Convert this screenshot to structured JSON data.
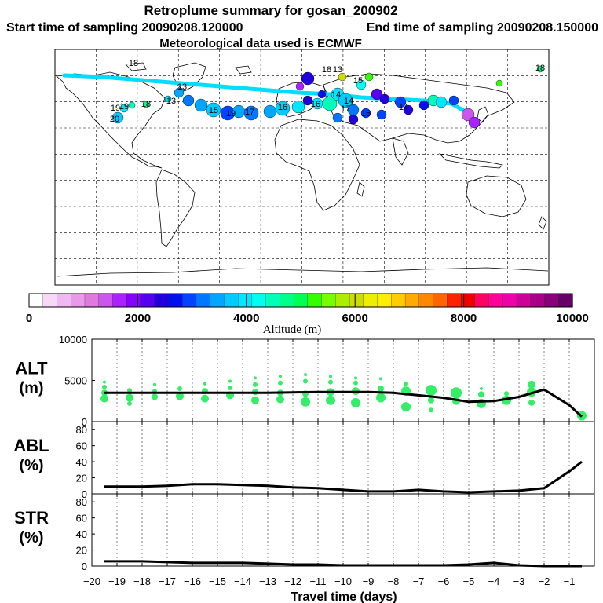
{
  "header": {
    "title": "Retroplume summary for gosan_200902",
    "start_label": "Start time of sampling 20090208.120000",
    "end_label": "End time of sampling 20090208.150000",
    "met_label": "Meteorological data used is ECMWF"
  },
  "map": {
    "plume_labels": [
      "18",
      "13",
      "19",
      "18",
      "13",
      "19",
      "15",
      "17",
      "16",
      "14",
      "16",
      "14",
      "20",
      "19",
      "18",
      "13",
      "15",
      "17",
      "16",
      "14",
      "18"
    ]
  },
  "colorbar": {
    "label": "Altitude (m)",
    "ticks": [
      "0",
      "2000",
      "4000",
      "6000",
      "8000",
      "10000"
    ],
    "colors": [
      "#ffffff",
      "#f7d8f7",
      "#f0b8f0",
      "#e89ae8",
      "#dd7add",
      "#cc55ee",
      "#aa22ff",
      "#8800ff",
      "#5500ee",
      "#2200dd",
      "#0011ee",
      "#0044ff",
      "#0077ff",
      "#00a6ff",
      "#00ccff",
      "#00e8ff",
      "#00ffee",
      "#00ffbb",
      "#00ff88",
      "#00ff55",
      "#33ff00",
      "#77ff00",
      "#aaee00",
      "#ccdd00",
      "#eeee00",
      "#ffee00",
      "#ffcc00",
      "#ffaa00",
      "#ff8800",
      "#ff6600",
      "#ff2200",
      "#ee0000",
      "#ff0066",
      "#ff0099",
      "#ee00aa",
      "#cc0099",
      "#aa0088",
      "#880077",
      "#660066"
    ]
  },
  "chart_data": [
    {
      "type": "line",
      "name": "ALT",
      "ylabel": "ALT (m)",
      "ylabel_main": "ALT",
      "ylabel_unit": "(m)",
      "ylim": [
        0,
        10000
      ],
      "yticks": [
        "0",
        "5000",
        "10000"
      ],
      "x": [
        -19.5,
        -18,
        -17,
        -16,
        -15,
        -14,
        -13,
        -12,
        -11,
        -10,
        -9,
        -8,
        -7,
        -6,
        -5,
        -4,
        -3,
        -2,
        -1,
        -0.5
      ],
      "values": [
        3500,
        3500,
        3500,
        3500,
        3500,
        3500,
        3500,
        3550,
        3600,
        3600,
        3600,
        3500,
        3200,
        2900,
        2400,
        2500,
        3000,
        3900,
        2000,
        600
      ],
      "scatter": [
        {
          "x": -19.5,
          "y": 2800,
          "s": 5
        },
        {
          "x": -19.5,
          "y": 3500,
          "s": 4
        },
        {
          "x": -19.5,
          "y": 4200,
          "s": 3
        },
        {
          "x": -19.5,
          "y": 4800,
          "s": 2
        },
        {
          "x": -18.5,
          "y": 2900,
          "s": 5
        },
        {
          "x": -18.5,
          "y": 3800,
          "s": 3
        },
        {
          "x": -18.5,
          "y": 2200,
          "s": 3
        },
        {
          "x": -17.5,
          "y": 3000,
          "s": 4
        },
        {
          "x": -17.5,
          "y": 3700,
          "s": 3
        },
        {
          "x": -17.5,
          "y": 4500,
          "s": 2
        },
        {
          "x": -16.5,
          "y": 3100,
          "s": 5
        },
        {
          "x": -16.5,
          "y": 4000,
          "s": 3
        },
        {
          "x": -15.5,
          "y": 2800,
          "s": 5
        },
        {
          "x": -15.5,
          "y": 3700,
          "s": 4
        },
        {
          "x": -15.5,
          "y": 4600,
          "s": 2
        },
        {
          "x": -14.5,
          "y": 3200,
          "s": 5
        },
        {
          "x": -14.5,
          "y": 4100,
          "s": 3
        },
        {
          "x": -14.5,
          "y": 4900,
          "s": 2
        },
        {
          "x": -13.5,
          "y": 2600,
          "s": 5
        },
        {
          "x": -13.5,
          "y": 3600,
          "s": 4
        },
        {
          "x": -13.5,
          "y": 4500,
          "s": 3
        },
        {
          "x": -13.5,
          "y": 5300,
          "s": 2
        },
        {
          "x": -12.5,
          "y": 2700,
          "s": 5
        },
        {
          "x": -12.5,
          "y": 3500,
          "s": 4
        },
        {
          "x": -12.5,
          "y": 4700,
          "s": 3
        },
        {
          "x": -12.5,
          "y": 5500,
          "s": 2
        },
        {
          "x": -11.5,
          "y": 2400,
          "s": 6
        },
        {
          "x": -11.5,
          "y": 3400,
          "s": 4
        },
        {
          "x": -11.5,
          "y": 4900,
          "s": 3
        },
        {
          "x": -11.5,
          "y": 5700,
          "s": 2
        },
        {
          "x": -10.5,
          "y": 2600,
          "s": 6
        },
        {
          "x": -10.5,
          "y": 3600,
          "s": 5
        },
        {
          "x": -10.5,
          "y": 4800,
          "s": 3
        },
        {
          "x": -10.5,
          "y": 5500,
          "s": 2
        },
        {
          "x": -9.5,
          "y": 2300,
          "s": 6
        },
        {
          "x": -9.5,
          "y": 3700,
          "s": 5
        },
        {
          "x": -9.5,
          "y": 4700,
          "s": 3
        },
        {
          "x": -9.5,
          "y": 5300,
          "s": 2
        },
        {
          "x": -8.5,
          "y": 2900,
          "s": 6
        },
        {
          "x": -8.5,
          "y": 4000,
          "s": 4
        },
        {
          "x": -8.5,
          "y": 5200,
          "s": 2
        },
        {
          "x": -7.5,
          "y": 1800,
          "s": 6
        },
        {
          "x": -7.5,
          "y": 3700,
          "s": 6
        },
        {
          "x": -7.5,
          "y": 4600,
          "s": 3
        },
        {
          "x": -6.5,
          "y": 3800,
          "s": 7
        },
        {
          "x": -6.5,
          "y": 2600,
          "s": 4
        },
        {
          "x": -6.5,
          "y": 1400,
          "s": 3
        },
        {
          "x": -5.5,
          "y": 3500,
          "s": 7
        },
        {
          "x": -5.5,
          "y": 2500,
          "s": 5
        },
        {
          "x": -4.5,
          "y": 2200,
          "s": 6
        },
        {
          "x": -4.5,
          "y": 3300,
          "s": 4
        },
        {
          "x": -4.5,
          "y": 4000,
          "s": 2
        },
        {
          "x": -3.5,
          "y": 2600,
          "s": 6
        },
        {
          "x": -3.5,
          "y": 3400,
          "s": 3
        },
        {
          "x": -2.5,
          "y": 3600,
          "s": 6
        },
        {
          "x": -2.5,
          "y": 4500,
          "s": 5
        },
        {
          "x": -2.5,
          "y": 2300,
          "s": 4
        },
        {
          "x": -0.5,
          "y": 700,
          "s": 6
        }
      ]
    },
    {
      "type": "line",
      "name": "ABL",
      "ylabel": "ABL (%)",
      "ylabel_main": "ABL",
      "ylabel_unit": "(%)",
      "ylim": [
        0,
        90
      ],
      "yticks": [
        "0",
        "20",
        "40",
        "60",
        "80"
      ],
      "x": [
        -19.5,
        -18,
        -17,
        -16,
        -15,
        -14,
        -13,
        -12,
        -11,
        -10,
        -9,
        -8,
        -7,
        -6,
        -5,
        -4,
        -3,
        -2,
        -1,
        -0.5
      ],
      "values": [
        9,
        9,
        10,
        12,
        12,
        11,
        10,
        8,
        7,
        5,
        3,
        3,
        5,
        3,
        2,
        3,
        4,
        7,
        28,
        40
      ]
    },
    {
      "type": "line",
      "name": "STR",
      "ylabel": "STR (%)",
      "ylabel_main": "STR",
      "ylabel_unit": "(%)",
      "ylim": [
        0,
        90
      ],
      "yticks": [
        "0",
        "20",
        "40",
        "60",
        "80"
      ],
      "x": [
        -19.5,
        -18,
        -17,
        -16,
        -15,
        -14,
        -13,
        -12,
        -11,
        -10,
        -9,
        -8,
        -7,
        -6,
        -5,
        -4,
        -3,
        -2,
        -1,
        -0.5
      ],
      "values": [
        6,
        6,
        5,
        4,
        4,
        4,
        3,
        2,
        2,
        1,
        1,
        1,
        1,
        1,
        2,
        4,
        1,
        0,
        0,
        0
      ]
    }
  ],
  "xaxis": {
    "label": "Travel time (days)",
    "ticks": [
      "−20",
      "−19",
      "−18",
      "−17",
      "−16",
      "−15",
      "−14",
      "−13",
      "−12",
      "−11",
      "−10",
      "−9",
      "−8",
      "−7",
      "−6",
      "−5",
      "−4",
      "−3",
      "−2",
      "−1"
    ],
    "tick_values": [
      -20,
      -19,
      -18,
      -17,
      -16,
      -15,
      -14,
      -13,
      -12,
      -11,
      -10,
      -9,
      -8,
      -7,
      -6,
      -5,
      -4,
      -3,
      -2,
      -1
    ]
  },
  "colors": {
    "scatter_fill": "#33ee66",
    "line": "#000000",
    "plume_path": "#00ddff",
    "coast": "#000000",
    "grid": "#000000"
  }
}
